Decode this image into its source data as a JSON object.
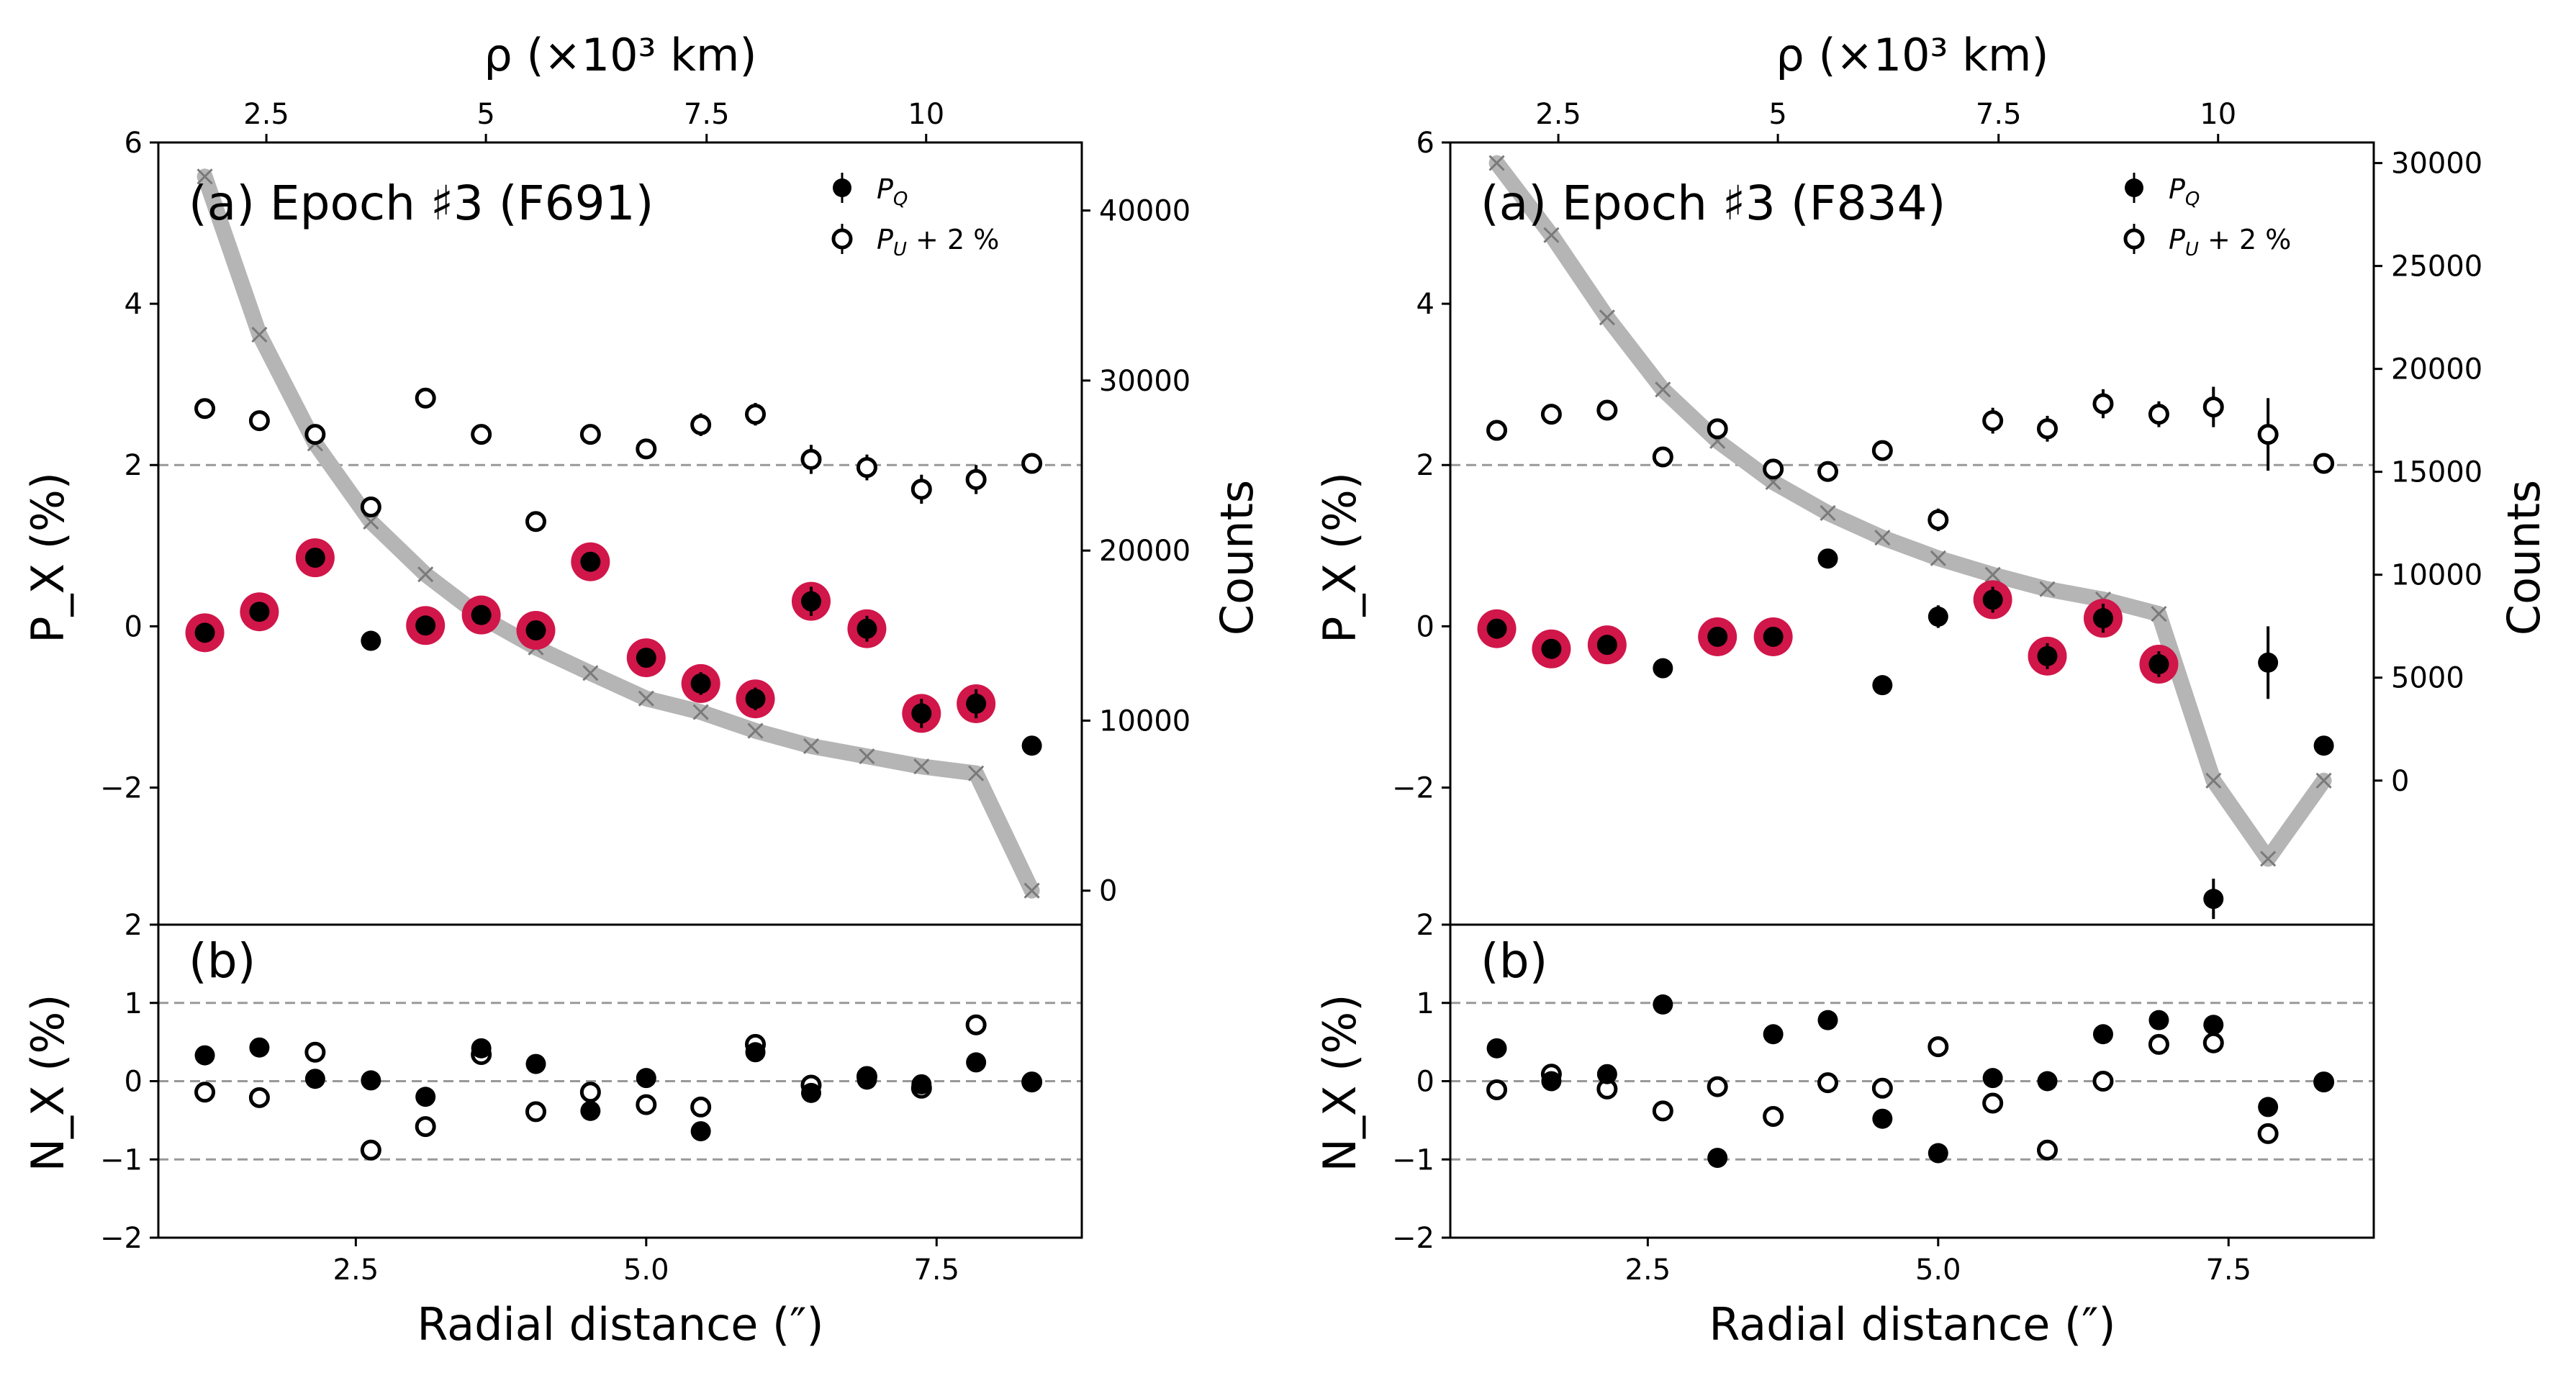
{
  "figure": {
    "x_title": "Radial distance (″)",
    "top_axis_title": "ρ (×10³ km)",
    "ylabel_top": "P_X (%)",
    "ylabel_bottom": "N_X (%)",
    "ylabel_counts": "Counts"
  },
  "chart_data": [
    {
      "type": "scatter",
      "title": "(a) Epoch ♯3 (F691)",
      "subpanel_label": "(b)",
      "xlabel": "Radial distance (″)",
      "ylabel": "P_X (%)",
      "xlim": [
        0.8,
        8.75
      ],
      "xticks": [
        2.5,
        5.0,
        7.5
      ],
      "xticklabels": [
        "2.5",
        "5.0",
        "7.5"
      ],
      "ylim": [
        -3.7,
        6
      ],
      "yticks": [
        -2,
        0,
        2,
        4,
        6
      ],
      "yticklabels": [
        "−2",
        "0",
        "2",
        "4",
        "6"
      ],
      "top_xticks": [
        {
          "label": "2.5",
          "x": 1.73
        },
        {
          "label": "5",
          "x": 3.62
        },
        {
          "label": "7.5",
          "x": 5.52
        },
        {
          "label": "10",
          "x": 7.41
        }
      ],
      "counts_axis": {
        "ylabel": "Counts",
        "ylim": [
          -2000,
          44000
        ],
        "ticks": [
          0,
          10000,
          20000,
          30000,
          40000
        ],
        "ticklabels": [
          "0",
          "10000",
          "20000",
          "30000",
          "40000"
        ]
      },
      "x": [
        1.2,
        1.67,
        2.15,
        2.63,
        3.1,
        3.58,
        4.05,
        4.52,
        5.0,
        5.47,
        5.94,
        6.42,
        6.9,
        7.37,
        7.84,
        8.32
      ],
      "series": [
        {
          "name": "P_Q",
          "legend_label": "P",
          "legend_sub": "Q",
          "values": [
            -0.08,
            0.18,
            0.85,
            -0.18,
            0.01,
            0.14,
            -0.05,
            0.8,
            -0.39,
            -0.71,
            -0.9,
            0.31,
            -0.03,
            -1.08,
            -0.96,
            -1.48
          ],
          "errors": [
            0.07,
            0.07,
            0.07,
            0.07,
            0.07,
            0.08,
            0.08,
            0.1,
            0.12,
            0.14,
            0.14,
            0.18,
            0.16,
            0.18,
            0.18,
            0.08
          ],
          "highlighted": [
            true,
            true,
            true,
            false,
            true,
            true,
            true,
            true,
            true,
            true,
            true,
            true,
            true,
            true,
            true,
            false
          ]
        },
        {
          "name": "P_U + 2 %",
          "legend_label": "P",
          "legend_sub": "U",
          "legend_suffix": " + 2 %",
          "values": [
            2.7,
            2.55,
            2.38,
            1.48,
            2.83,
            2.38,
            1.3,
            2.38,
            2.2,
            2.5,
            2.63,
            2.07,
            1.97,
            1.7,
            1.82,
            2.02
          ],
          "errors": [
            0.07,
            0.07,
            0.07,
            0.07,
            0.07,
            0.08,
            0.08,
            0.1,
            0.12,
            0.14,
            0.14,
            0.18,
            0.16,
            0.18,
            0.18,
            0.08
          ]
        },
        {
          "name": "Counts",
          "axis": "right",
          "values": [
            42000,
            32700,
            26300,
            21700,
            18600,
            16100,
            14300,
            12800,
            11300,
            10500,
            9400,
            8500,
            7900,
            7300,
            6900,
            0
          ]
        }
      ],
      "subpanel": {
        "ylim": [
          -2,
          2
        ],
        "yticks": [
          -2,
          -1,
          0,
          1,
          2
        ],
        "yticklabels": [
          "−2",
          "−1",
          "0",
          "1",
          "2"
        ],
        "reference_lines": [
          1,
          0,
          -1
        ],
        "N_Q": [
          0.33,
          0.43,
          0.03,
          0.01,
          -0.2,
          0.42,
          0.22,
          -0.38,
          0.04,
          -0.64,
          0.37,
          -0.15,
          0.02,
          -0.04,
          0.24,
          -0.01
        ],
        "N_U": [
          -0.14,
          -0.21,
          0.37,
          -0.88,
          -0.58,
          0.34,
          -0.39,
          -0.14,
          -0.3,
          -0.33,
          0.47,
          -0.05,
          0.06,
          -0.09,
          0.72,
          -0.01
        ]
      }
    },
    {
      "type": "scatter",
      "title": "(a) Epoch ♯3 (F834)",
      "subpanel_label": "(b)",
      "xlabel": "Radial distance (″)",
      "ylabel": "P_X (%)",
      "xlim": [
        0.8,
        8.75
      ],
      "xticks": [
        2.5,
        5.0,
        7.5
      ],
      "xticklabels": [
        "2.5",
        "5.0",
        "7.5"
      ],
      "ylim": [
        -3.7,
        6
      ],
      "yticks": [
        -2,
        0,
        2,
        4,
        6
      ],
      "yticklabels": [
        "−2",
        "0",
        "2",
        "4",
        "6"
      ],
      "top_xticks": [
        {
          "label": "2.5",
          "x": 1.73
        },
        {
          "label": "5",
          "x": 3.62
        },
        {
          "label": "7.5",
          "x": 5.52
        },
        {
          "label": "10",
          "x": 7.41
        }
      ],
      "counts_axis": {
        "ylabel": "Counts",
        "ylim": [
          -7000,
          31000
        ],
        "ticks": [
          0,
          5000,
          10000,
          15000,
          20000,
          25000,
          30000
        ],
        "ticklabels": [
          "0",
          "5000",
          "10000",
          "15000",
          "20000",
          "25000",
          "30000"
        ]
      },
      "x": [
        1.2,
        1.67,
        2.15,
        2.63,
        3.1,
        3.58,
        4.05,
        4.52,
        5.0,
        5.47,
        5.94,
        6.42,
        6.9,
        7.37,
        7.84,
        8.32
      ],
      "series": [
        {
          "name": "P_Q",
          "legend_label": "P",
          "legend_sub": "Q",
          "values": [
            -0.03,
            -0.28,
            -0.23,
            -0.52,
            -0.13,
            -0.13,
            0.84,
            -0.73,
            0.12,
            0.33,
            -0.37,
            0.1,
            -0.47,
            -3.38,
            -0.45,
            -1.48
          ],
          "errors": [
            0.07,
            0.07,
            0.07,
            0.08,
            0.08,
            0.08,
            0.1,
            0.12,
            0.14,
            0.16,
            0.16,
            0.18,
            0.16,
            0.25,
            0.45,
            0.08
          ],
          "highlighted": [
            true,
            true,
            true,
            false,
            true,
            true,
            false,
            false,
            false,
            true,
            true,
            true,
            true,
            false,
            false,
            false
          ]
        },
        {
          "name": "P_U + 2 %",
          "legend_label": "P",
          "legend_sub": "U",
          "legend_suffix": " + 2 %",
          "values": [
            2.43,
            2.63,
            2.68,
            2.1,
            2.45,
            1.95,
            1.92,
            2.18,
            1.32,
            2.55,
            2.45,
            2.76,
            2.63,
            2.72,
            2.38,
            2.02
          ],
          "errors": [
            0.07,
            0.07,
            0.07,
            0.08,
            0.08,
            0.08,
            0.1,
            0.12,
            0.14,
            0.16,
            0.16,
            0.18,
            0.16,
            0.25,
            0.45,
            0.08
          ]
        },
        {
          "name": "Counts",
          "axis": "right",
          "values": [
            30000,
            26500,
            22500,
            19000,
            16500,
            14500,
            13000,
            11800,
            10800,
            10000,
            9300,
            8800,
            8100,
            0,
            -3800,
            0
          ]
        }
      ],
      "subpanel": {
        "ylim": [
          -2,
          2
        ],
        "yticks": [
          -2,
          -1,
          0,
          1,
          2
        ],
        "yticklabels": [
          "−2",
          "−1",
          "0",
          "1",
          "2"
        ],
        "reference_lines": [
          1,
          0,
          -1
        ],
        "N_Q": [
          0.42,
          0.0,
          0.09,
          0.98,
          -0.98,
          0.6,
          0.78,
          -0.48,
          -0.92,
          0.04,
          0.0,
          0.6,
          0.78,
          0.72,
          -0.33,
          -0.01
        ],
        "N_U": [
          -0.11,
          0.09,
          -0.1,
          -0.38,
          -0.07,
          -0.45,
          -0.02,
          -0.09,
          0.44,
          -0.28,
          -0.88,
          0.0,
          0.47,
          0.49,
          -0.67,
          -0.01
        ]
      }
    }
  ]
}
